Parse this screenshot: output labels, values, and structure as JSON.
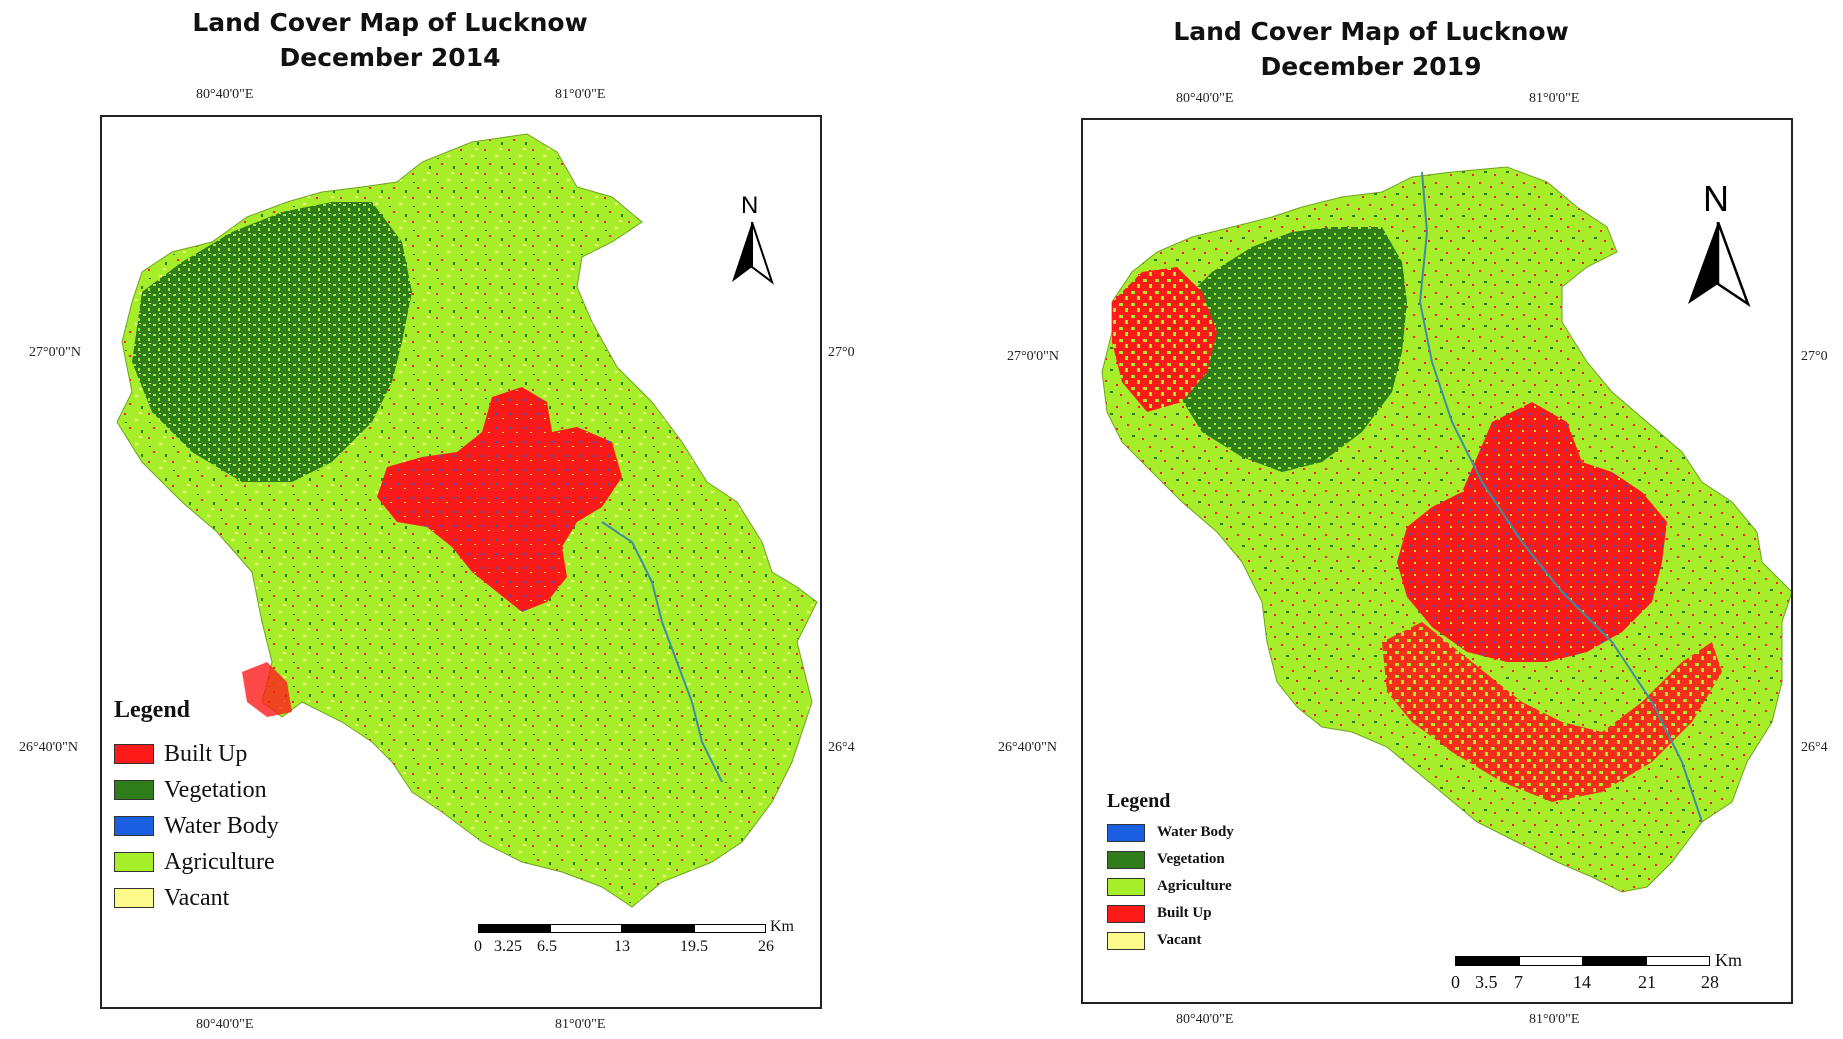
{
  "maps": [
    {
      "title_line1": "Land Cover Map of Lucknow",
      "title_line2": "December 2014",
      "lon_left": "80°40'0\"E",
      "lon_right": "81°0'0\"E",
      "lat_top_left": "27°0'0\"N",
      "lat_top_right": "27°0",
      "lat_bottom_left": "26°40'0\"N",
      "lat_bottom_right": "26°4",
      "north_label": "N",
      "legend_title": "Legend",
      "legend": [
        {
          "label": "Built Up",
          "color": "#ff1a1a"
        },
        {
          "label": "Vegetation",
          "color": "#2e7d1a"
        },
        {
          "label": "Water Body",
          "color": "#1a5fe0"
        },
        {
          "label": "Agriculture",
          "color": "#a6ee2a"
        },
        {
          "label": "Vacant",
          "color": "#fdfa8c"
        }
      ],
      "scale_labels": [
        "0",
        "3.25",
        "6.5",
        "13",
        "19.5",
        "26"
      ],
      "scale_unit": "Km"
    },
    {
      "title_line1": "Land Cover Map of Lucknow",
      "title_line2": "December 2019",
      "lon_left": "80°40'0\"E",
      "lon_right": "81°0'0\"E",
      "lat_top_left": "27°0'0\"N",
      "lat_top_right": "27°0",
      "lat_bottom_left": "26°40'0\"N",
      "lat_bottom_right": "26°4",
      "north_label": "N",
      "legend_title": "Legend",
      "legend": [
        {
          "label": "Water Body",
          "color": "#1a5fe0"
        },
        {
          "label": "Vegetation",
          "color": "#2e7d1a"
        },
        {
          "label": "Agriculture",
          "color": "#a6ee2a"
        },
        {
          "label": "Built Up",
          "color": "#ff1a1a"
        },
        {
          "label": "Vacant",
          "color": "#fdfa8c"
        }
      ],
      "scale_labels": [
        "0",
        "3.5",
        "7",
        "14",
        "21",
        "28"
      ],
      "scale_unit": "Km"
    }
  ],
  "colors": {
    "built_up": "#ff1a1a",
    "vegetation": "#2e7d1a",
    "water_body": "#1a5fe0",
    "agriculture": "#a6ee2a",
    "vacant": "#fdfa8c"
  },
  "icons": [
    "north-arrow-icon",
    "scale-bar"
  ]
}
